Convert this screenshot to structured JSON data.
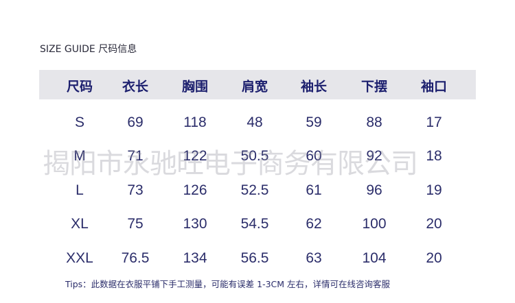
{
  "title": "SIZE GUIDE 尺码信息",
  "table": {
    "headers": [
      "尺码",
      "衣长",
      "胸围",
      "肩宽",
      "袖长",
      "下摆",
      "袖口"
    ],
    "rows": [
      [
        "S",
        "69",
        "118",
        "48",
        "59",
        "88",
        "17"
      ],
      [
        "M",
        "71",
        "122",
        "50.5",
        "60",
        "92",
        "18"
      ],
      [
        "L",
        "73",
        "126",
        "52.5",
        "61",
        "96",
        "19"
      ],
      [
        "XL",
        "75",
        "130",
        "54.5",
        "62",
        "100",
        "20"
      ],
      [
        "XXL",
        "76.5",
        "134",
        "56.5",
        "63",
        "104",
        "20"
      ]
    ]
  },
  "watermark": "揭阳市永驰旺电子商务有限公司",
  "tips": "Tips：此数据在衣服平铺下手工测量，可能有误差 1-3CM 左右，详情可在线咨询客服",
  "colors": {
    "header_band": "#e6e6ea",
    "text": "#1c1f6e"
  }
}
